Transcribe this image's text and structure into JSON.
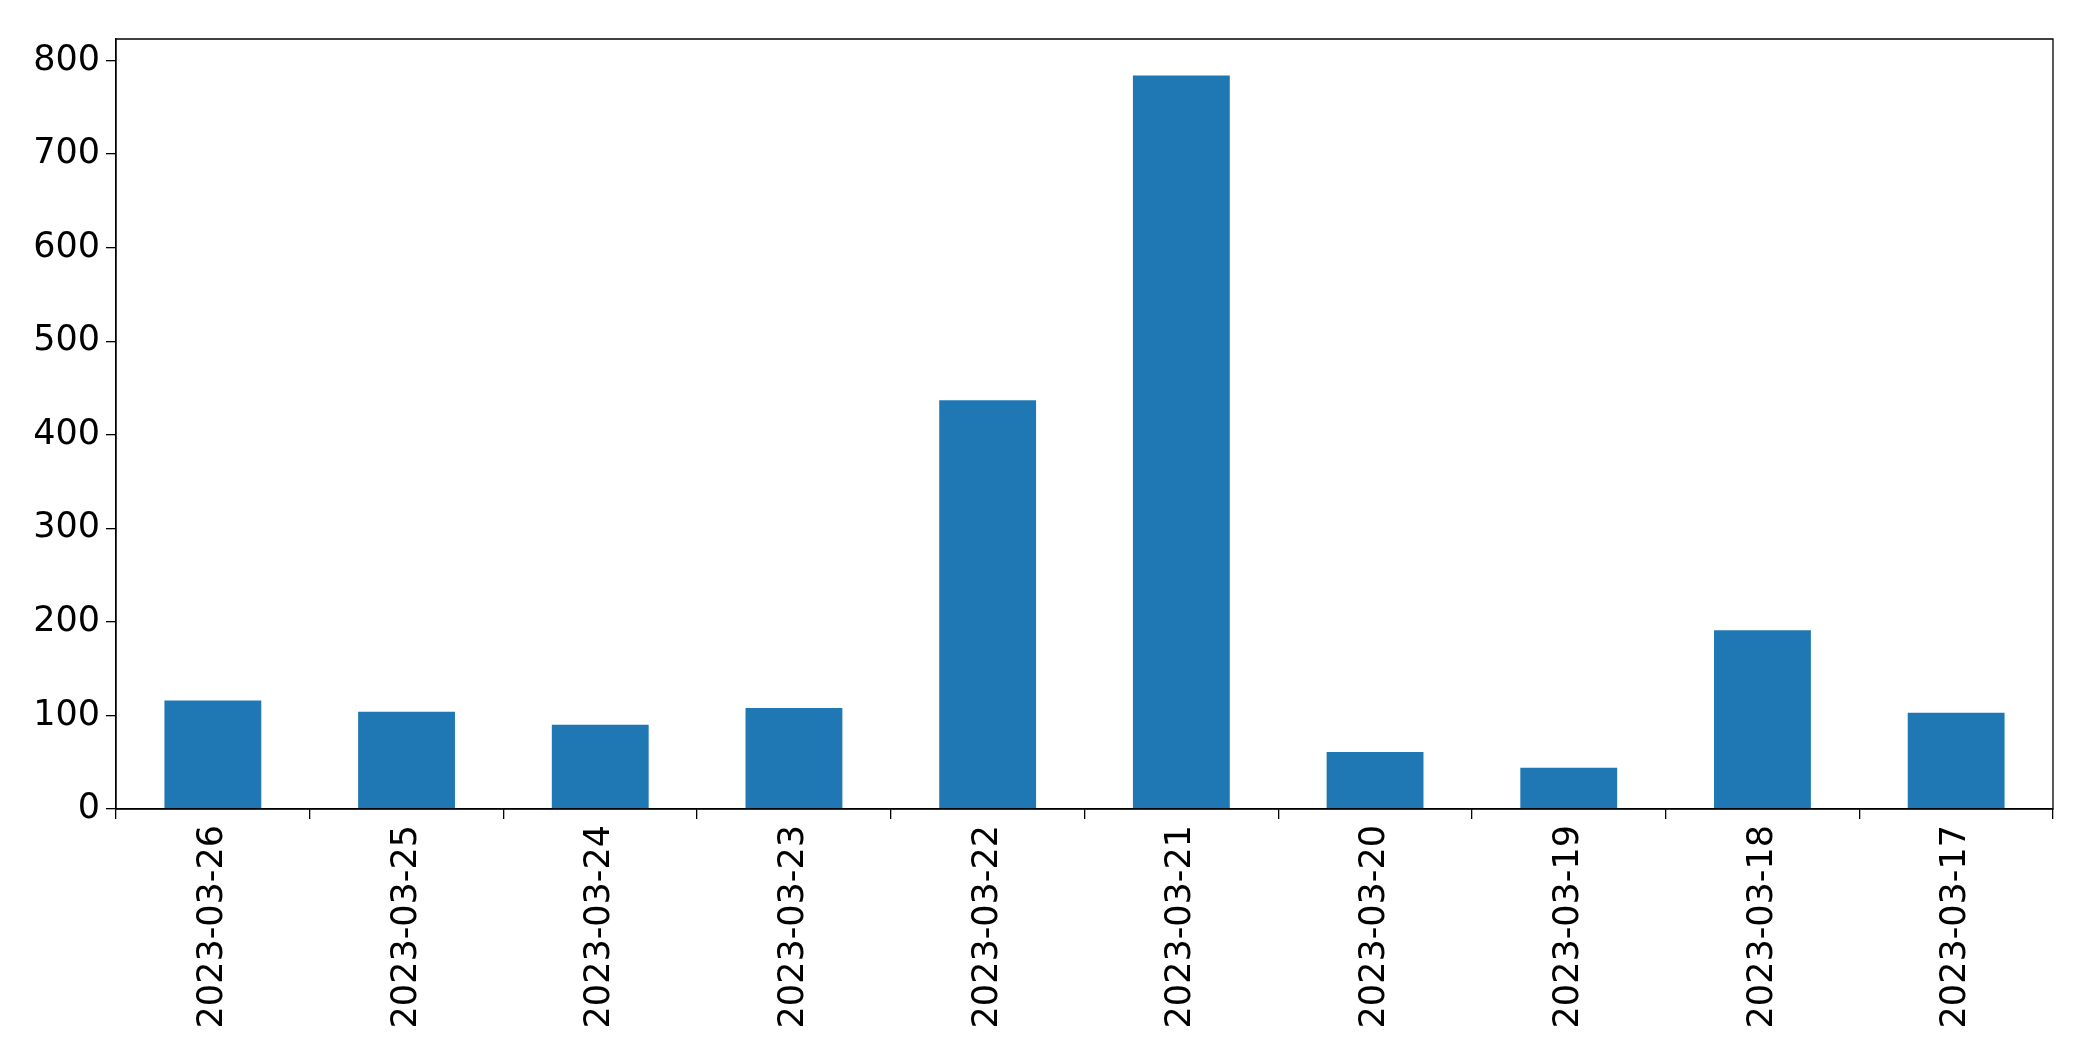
{
  "chart_data": {
    "type": "bar",
    "categories": [
      "2023-03-26",
      "2023-03-25",
      "2023-03-24",
      "2023-03-23",
      "2023-03-22",
      "2023-03-21",
      "2023-03-20",
      "2023-03-19",
      "2023-03-18",
      "2023-03-17"
    ],
    "values": [
      116,
      104,
      90,
      108,
      437,
      784,
      61,
      44,
      191,
      103
    ],
    "color": "#1f77b4",
    "ylim": [
      0,
      823
    ],
    "yticks": [
      0,
      100,
      200,
      300,
      400,
      500,
      600,
      700,
      800
    ]
  }
}
